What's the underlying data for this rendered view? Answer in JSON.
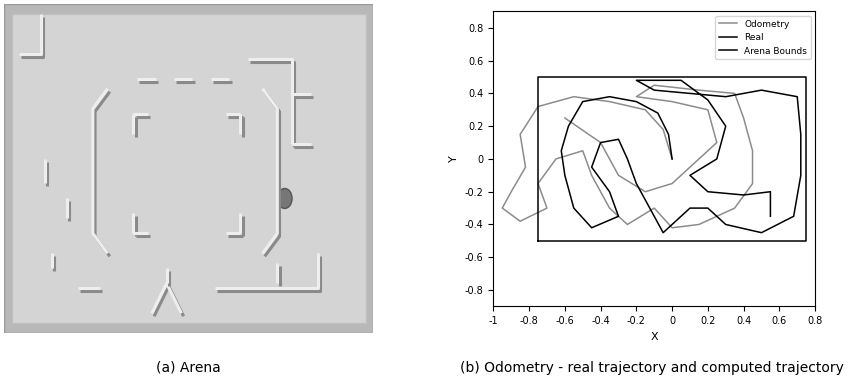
{
  "chart_data": {
    "type": "line",
    "xlabel": "X",
    "ylabel": "Y",
    "xlim": [
      -1,
      0.8
    ],
    "ylim": [
      -0.9,
      0.9
    ],
    "xticks": [
      -1,
      -0.8,
      -0.6,
      -0.4,
      -0.2,
      0,
      0.2,
      0.4,
      0.6,
      0.8
    ],
    "yticks": [
      -0.8,
      -0.6,
      -0.4,
      -0.2,
      0,
      0.2,
      0.4,
      0.6,
      0.8
    ],
    "legend": "upper right",
    "series": [
      {
        "name": "Odometry",
        "color": "#8c8c8c",
        "line_style": "solid",
        "x": [
          0,
          -0.05,
          -0.15,
          -0.35,
          -0.55,
          -0.75,
          -0.85,
          -0.82,
          -0.9,
          -0.95,
          -0.85,
          -0.7,
          -0.75,
          -0.65,
          -0.5,
          -0.45,
          -0.35,
          -0.25,
          -0.1,
          0.0,
          0.15,
          0.35,
          0.45,
          0.45,
          0.4,
          0.35,
          0.15,
          -0.1,
          -0.2,
          0.0,
          0.2,
          0.25,
          0.1,
          0.0,
          -0.15,
          -0.3,
          -0.4,
          -0.6
        ],
        "values": [
          0,
          0.18,
          0.3,
          0.35,
          0.38,
          0.32,
          0.15,
          -0.05,
          -0.2,
          -0.3,
          -0.38,
          -0.3,
          -0.15,
          0.0,
          0.05,
          -0.1,
          -0.3,
          -0.4,
          -0.3,
          -0.42,
          -0.4,
          -0.3,
          -0.15,
          0.05,
          0.25,
          0.4,
          0.42,
          0.45,
          0.38,
          0.35,
          0.3,
          0.1,
          -0.05,
          -0.15,
          -0.2,
          -0.1,
          0.1,
          0.25
        ]
      },
      {
        "name": "Real",
        "color": "#000000",
        "line_style": "solid",
        "x": [
          0,
          -0.02,
          -0.08,
          -0.2,
          -0.35,
          -0.5,
          -0.58,
          -0.62,
          -0.6,
          -0.55,
          -0.45,
          -0.3,
          -0.35,
          -0.45,
          -0.4,
          -0.3,
          -0.25,
          -0.2,
          -0.1,
          -0.05,
          0.0,
          0.1,
          0.2,
          0.3,
          0.5,
          0.68,
          0.72,
          0.72,
          0.7,
          0.5,
          0.3,
          0.1,
          -0.1,
          -0.2,
          0.05,
          0.2,
          0.3,
          0.25,
          0.1,
          0.2,
          0.4,
          0.55,
          0.55
        ],
        "values": [
          0,
          0.15,
          0.28,
          0.35,
          0.38,
          0.35,
          0.2,
          0.05,
          -0.1,
          -0.3,
          -0.42,
          -0.35,
          -0.2,
          -0.05,
          0.1,
          0.12,
          0.0,
          -0.15,
          -0.35,
          -0.45,
          -0.4,
          -0.3,
          -0.3,
          -0.4,
          -0.45,
          -0.35,
          -0.1,
          0.15,
          0.38,
          0.42,
          0.38,
          0.4,
          0.42,
          0.48,
          0.48,
          0.36,
          0.2,
          0.0,
          -0.1,
          -0.2,
          -0.22,
          -0.2,
          -0.35
        ]
      },
      {
        "name": "Arena Bounds",
        "color": "#000000",
        "line_style": "solid",
        "x": [
          -0.75,
          0.75,
          0.75,
          -0.75,
          -0.75
        ],
        "values": [
          -0.5,
          -0.5,
          0.5,
          0.5,
          -0.5
        ]
      }
    ]
  },
  "captions": [
    "(a) Arena",
    "(b) Odometry - real trajectory and computed trajectory"
  ]
}
